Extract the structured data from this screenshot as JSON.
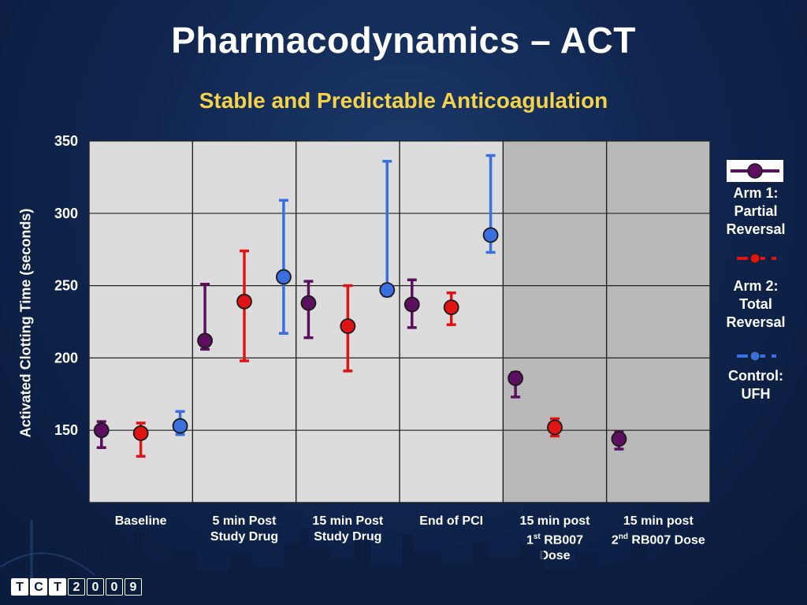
{
  "title": "Pharmacodynamics – ACT",
  "subtitle": "Stable and Predictable Anticoagulation",
  "colors": {
    "arm1": "#5c0f5e",
    "arm2": "#e01414",
    "control": "#3a6fe0",
    "plot_bg_light": "#dcdcdc",
    "plot_bg_dark": "#b9b9b9"
  },
  "chart_data": {
    "type": "scatter",
    "title": "Pharmacodynamics – ACT",
    "ylabel": "Activated Clotting Time (seconds)",
    "ylim": [
      100,
      350
    ],
    "yticks": [
      "150",
      "200",
      "250",
      "300",
      "350"
    ],
    "categories": [
      [
        "Baseline"
      ],
      [
        "5 min Post",
        "Study Drug"
      ],
      [
        "15 min Post",
        "Study Drug"
      ],
      [
        "End of PCI"
      ],
      [
        "15 min post",
        "1",
        "st",
        " RB007",
        "Dose"
      ],
      [
        "15 min post",
        "2",
        "nd",
        " RB007 Dose"
      ]
    ],
    "shaded_categories": [
      4,
      5
    ],
    "grid": true,
    "legend_position": "right",
    "series": [
      {
        "name": "Arm 1: Partial Reversal",
        "color": "#5c0f5e",
        "points": [
          {
            "cat": 0,
            "y": 150,
            "low": 138,
            "high": 156
          },
          {
            "cat": 1,
            "y": 212,
            "low": 206,
            "high": 251
          },
          {
            "cat": 2,
            "y": 238,
            "low": 214,
            "high": 253
          },
          {
            "cat": 3,
            "y": 237,
            "low": 221,
            "high": 254
          },
          {
            "cat": 4,
            "y": 186,
            "low": 173,
            "high": 190
          },
          {
            "cat": 5,
            "y": 144,
            "low": 137,
            "high": 149
          }
        ]
      },
      {
        "name": "Arm 2: Total Reversal",
        "color": "#e01414",
        "points": [
          {
            "cat": 0,
            "y": 148,
            "low": 132,
            "high": 155
          },
          {
            "cat": 1,
            "y": 239,
            "low": 198,
            "high": 274
          },
          {
            "cat": 2,
            "y": 222,
            "low": 191,
            "high": 250
          },
          {
            "cat": 3,
            "y": 235,
            "low": 223,
            "high": 245
          },
          {
            "cat": 4,
            "y": 152,
            "low": 146,
            "high": 158
          }
        ]
      },
      {
        "name": "Control: UFH",
        "color": "#3a6fe0",
        "points": [
          {
            "cat": 0,
            "y": 153,
            "low": 147,
            "high": 163
          },
          {
            "cat": 1,
            "y": 256,
            "low": 217,
            "high": 309
          },
          {
            "cat": 2,
            "y": 247,
            "low": 243,
            "high": 336
          },
          {
            "cat": 3,
            "y": 285,
            "low": 273,
            "high": 340
          }
        ]
      }
    ]
  },
  "legend": [
    {
      "lines": [
        "Arm 1:",
        "Partial",
        "Reversal"
      ]
    },
    {
      "lines": [
        "Arm 2:",
        "Total",
        "Reversal"
      ]
    },
    {
      "lines": [
        "Control:",
        "UFH"
      ]
    }
  ],
  "logo": {
    "letters": [
      "T",
      "C",
      "T",
      "2",
      "0",
      "0",
      "9"
    ]
  }
}
